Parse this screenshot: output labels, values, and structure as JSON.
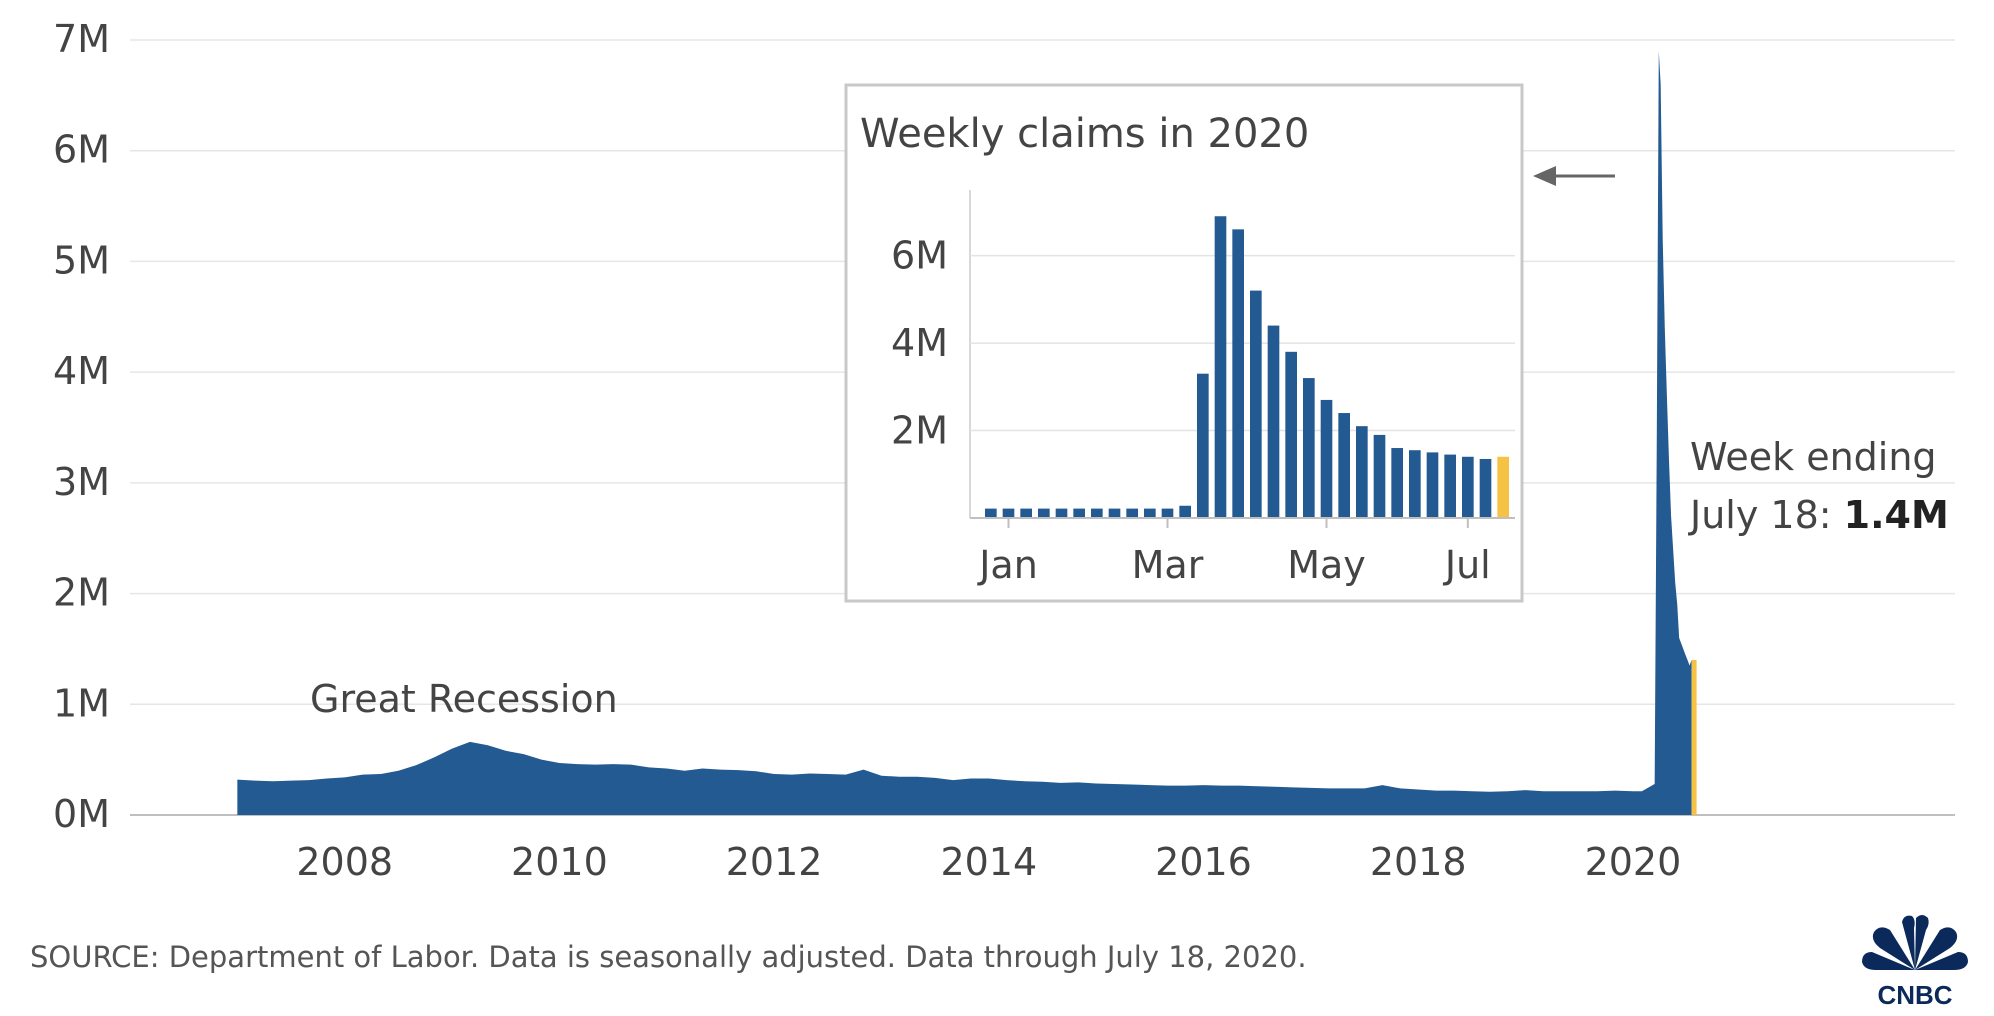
{
  "chart_data": {
    "main": {
      "type": "area",
      "ylim": [
        0,
        7000000
      ],
      "yticks": [
        {
          "value": 0,
          "label": "0M"
        },
        {
          "value": 1000000,
          "label": "1M"
        },
        {
          "value": 2000000,
          "label": "2M"
        },
        {
          "value": 3000000,
          "label": "3M"
        },
        {
          "value": 4000000,
          "label": "4M"
        },
        {
          "value": 5000000,
          "label": "5M"
        },
        {
          "value": 6000000,
          "label": "6M"
        },
        {
          "value": 7000000,
          "label": "7M"
        }
      ],
      "xticks": [
        {
          "value": 2008,
          "label": "2008"
        },
        {
          "value": 2010,
          "label": "2010"
        },
        {
          "value": 2012,
          "label": "2012"
        },
        {
          "value": 2014,
          "label": "2014"
        },
        {
          "value": 2016,
          "label": "2016"
        },
        {
          "value": 2018,
          "label": "2018"
        },
        {
          "value": 2020,
          "label": "2020"
        }
      ],
      "xlim": [
        2006.0,
        2023.0
      ],
      "grid": true,
      "highlight_color": "#f6c244",
      "series_color": "#245a92",
      "series": [
        {
          "x": "2007-01",
          "y": 320000
        },
        {
          "x": "2007-03",
          "y": 310000
        },
        {
          "x": "2007-05",
          "y": 305000
        },
        {
          "x": "2007-07",
          "y": 310000
        },
        {
          "x": "2007-09",
          "y": 315000
        },
        {
          "x": "2007-11",
          "y": 330000
        },
        {
          "x": "2008-01",
          "y": 340000
        },
        {
          "x": "2008-03",
          "y": 365000
        },
        {
          "x": "2008-05",
          "y": 370000
        },
        {
          "x": "2008-07",
          "y": 400000
        },
        {
          "x": "2008-09",
          "y": 450000
        },
        {
          "x": "2008-11",
          "y": 520000
        },
        {
          "x": "2009-01",
          "y": 600000
        },
        {
          "x": "2009-03",
          "y": 660000
        },
        {
          "x": "2009-05",
          "y": 630000
        },
        {
          "x": "2009-07",
          "y": 580000
        },
        {
          "x": "2009-09",
          "y": 550000
        },
        {
          "x": "2009-11",
          "y": 500000
        },
        {
          "x": "2010-01",
          "y": 470000
        },
        {
          "x": "2010-03",
          "y": 460000
        },
        {
          "x": "2010-05",
          "y": 455000
        },
        {
          "x": "2010-07",
          "y": 460000
        },
        {
          "x": "2010-09",
          "y": 455000
        },
        {
          "x": "2010-11",
          "y": 430000
        },
        {
          "x": "2011-01",
          "y": 420000
        },
        {
          "x": "2011-03",
          "y": 400000
        },
        {
          "x": "2011-05",
          "y": 420000
        },
        {
          "x": "2011-07",
          "y": 410000
        },
        {
          "x": "2011-09",
          "y": 405000
        },
        {
          "x": "2011-11",
          "y": 395000
        },
        {
          "x": "2012-01",
          "y": 370000
        },
        {
          "x": "2012-03",
          "y": 365000
        },
        {
          "x": "2012-05",
          "y": 375000
        },
        {
          "x": "2012-07",
          "y": 370000
        },
        {
          "x": "2012-09",
          "y": 365000
        },
        {
          "x": "2012-11",
          "y": 410000
        },
        {
          "x": "2013-01",
          "y": 355000
        },
        {
          "x": "2013-03",
          "y": 345000
        },
        {
          "x": "2013-05",
          "y": 345000
        },
        {
          "x": "2013-07",
          "y": 335000
        },
        {
          "x": "2013-09",
          "y": 315000
        },
        {
          "x": "2013-11",
          "y": 330000
        },
        {
          "x": "2014-01",
          "y": 330000
        },
        {
          "x": "2014-03",
          "y": 315000
        },
        {
          "x": "2014-05",
          "y": 305000
        },
        {
          "x": "2014-07",
          "y": 300000
        },
        {
          "x": "2014-09",
          "y": 290000
        },
        {
          "x": "2014-11",
          "y": 295000
        },
        {
          "x": "2015-01",
          "y": 285000
        },
        {
          "x": "2015-03",
          "y": 280000
        },
        {
          "x": "2015-05",
          "y": 275000
        },
        {
          "x": "2015-07",
          "y": 270000
        },
        {
          "x": "2015-09",
          "y": 265000
        },
        {
          "x": "2015-11",
          "y": 265000
        },
        {
          "x": "2016-01",
          "y": 270000
        },
        {
          "x": "2016-03",
          "y": 265000
        },
        {
          "x": "2016-05",
          "y": 265000
        },
        {
          "x": "2016-07",
          "y": 260000
        },
        {
          "x": "2016-09",
          "y": 255000
        },
        {
          "x": "2016-11",
          "y": 250000
        },
        {
          "x": "2017-01",
          "y": 245000
        },
        {
          "x": "2017-03",
          "y": 240000
        },
        {
          "x": "2017-05",
          "y": 240000
        },
        {
          "x": "2017-07",
          "y": 240000
        },
        {
          "x": "2017-09",
          "y": 270000
        },
        {
          "x": "2017-11",
          "y": 240000
        },
        {
          "x": "2018-01",
          "y": 230000
        },
        {
          "x": "2018-03",
          "y": 220000
        },
        {
          "x": "2018-05",
          "y": 220000
        },
        {
          "x": "2018-07",
          "y": 215000
        },
        {
          "x": "2018-09",
          "y": 210000
        },
        {
          "x": "2018-11",
          "y": 215000
        },
        {
          "x": "2019-01",
          "y": 225000
        },
        {
          "x": "2019-03",
          "y": 215000
        },
        {
          "x": "2019-05",
          "y": 215000
        },
        {
          "x": "2019-07",
          "y": 215000
        },
        {
          "x": "2019-09",
          "y": 215000
        },
        {
          "x": "2019-11",
          "y": 220000
        },
        {
          "x": "2020-01",
          "y": 215000
        },
        {
          "x": "2020-02",
          "y": 215000
        },
        {
          "x": "2020-03-14",
          "y": 280000
        },
        {
          "x": "2020-03-21",
          "y": 3300000
        },
        {
          "x": "2020-03-28",
          "y": 6900000
        },
        {
          "x": "2020-04-04",
          "y": 6600000
        },
        {
          "x": "2020-04-11",
          "y": 5200000
        },
        {
          "x": "2020-04-18",
          "y": 4400000
        },
        {
          "x": "2020-04-25",
          "y": 3800000
        },
        {
          "x": "2020-05-02",
          "y": 3200000
        },
        {
          "x": "2020-05-09",
          "y": 2700000
        },
        {
          "x": "2020-05-16",
          "y": 2400000
        },
        {
          "x": "2020-05-23",
          "y": 2100000
        },
        {
          "x": "2020-05-30",
          "y": 1900000
        },
        {
          "x": "2020-06-06",
          "y": 1600000
        },
        {
          "x": "2020-06-13",
          "y": 1550000
        },
        {
          "x": "2020-06-20",
          "y": 1500000
        },
        {
          "x": "2020-06-27",
          "y": 1450000
        },
        {
          "x": "2020-07-04",
          "y": 1400000
        },
        {
          "x": "2020-07-11",
          "y": 1350000
        },
        {
          "x": "2020-07-18",
          "y": 1400000
        }
      ],
      "highlight_x": "2020-07-18",
      "annotations": [
        {
          "id": "great-recession",
          "text": "Great Recession"
        },
        {
          "id": "week-ending",
          "line1": "Week ending",
          "line2_prefix": "July 18: ",
          "line2_bold": "1.4M"
        }
      ]
    },
    "inset": {
      "type": "bar",
      "title": "Weekly claims in 2020",
      "ylim": [
        0,
        7500000
      ],
      "yticks": [
        {
          "value": 2000000,
          "label": "2M"
        },
        {
          "value": 4000000,
          "label": "4M"
        },
        {
          "value": 6000000,
          "label": "6M"
        }
      ],
      "xtick_labels": [
        {
          "label": "Jan",
          "index": 1
        },
        {
          "label": "Mar",
          "index": 10
        },
        {
          "label": "May",
          "index": 19
        },
        {
          "label": "Jul",
          "index": 27
        }
      ],
      "grid": true,
      "values": [
        215000,
        215000,
        215000,
        215000,
        215000,
        215000,
        215000,
        215000,
        215000,
        215000,
        215000,
        280000,
        3300000,
        6900000,
        6600000,
        5200000,
        4400000,
        3800000,
        3200000,
        2700000,
        2400000,
        2100000,
        1900000,
        1600000,
        1550000,
        1500000,
        1450000,
        1400000,
        1350000,
        1400000
      ],
      "highlight_index": 29
    }
  },
  "footer": {
    "source": "SOURCE: Department of Labor. Data is seasonally adjusted. Data through July 18, 2020.",
    "logo": "cnbc-peacock-logo",
    "logo_text": "CNBC"
  }
}
